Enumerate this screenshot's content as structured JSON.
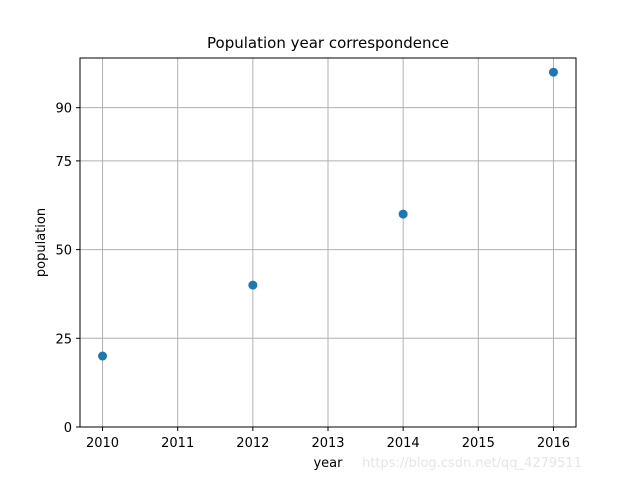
{
  "chart_data": {
    "type": "scatter",
    "title": "Population year correspondence",
    "xlabel": "year",
    "ylabel": "population",
    "x": [
      2010,
      2012,
      2014,
      2016
    ],
    "y": [
      20,
      40,
      60,
      100
    ],
    "xticks": [
      "2010",
      "2011",
      "2012",
      "2013",
      "2014",
      "2015",
      "2016"
    ],
    "yticks": [
      "0",
      "25",
      "50",
      "75",
      "90"
    ],
    "xlim": [
      2009.7,
      2016.3
    ],
    "ylim": [
      0,
      104
    ],
    "grid": true,
    "marker_color": "#1f77b4"
  },
  "watermark": "https://blog.csdn.net/qq_4279511"
}
